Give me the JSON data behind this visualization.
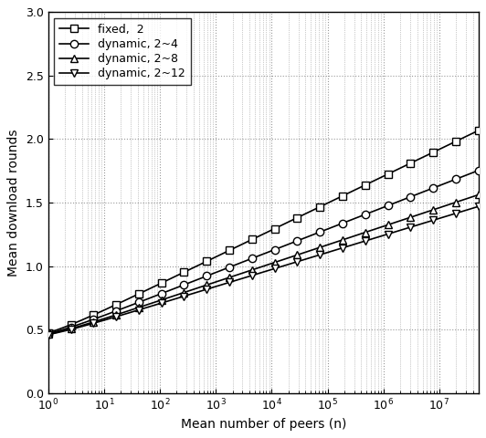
{
  "xlabel": "Mean number of peers (n)",
  "ylabel": "Mean download rounds",
  "xlim": [
    1,
    50000000
  ],
  "ylim": [
    0,
    3
  ],
  "yticks": [
    0,
    0.5,
    1.0,
    1.5,
    2.0,
    2.5,
    3.0
  ],
  "series": [
    {
      "label": "fixed,  2",
      "marker": "s",
      "a": 0.0638,
      "b": 0.436
    },
    {
      "label": "dynamic, 2~4",
      "marker": "o",
      "a": 0.0515,
      "b": 0.436
    },
    {
      "label": "dynamic, 2~8",
      "marker": "^",
      "a": 0.044,
      "b": 0.436
    },
    {
      "label": "dynamic, 2~12",
      "marker": "v",
      "a": 0.0404,
      "b": 0.436
    }
  ],
  "n_curve_pts": 500,
  "n_marker_pts": 20,
  "marker_size": 6,
  "linewidth": 1.2,
  "grid_color": "#999999",
  "background_color": "#ffffff",
  "legend_fontsize": 9,
  "axis_fontsize": 10
}
